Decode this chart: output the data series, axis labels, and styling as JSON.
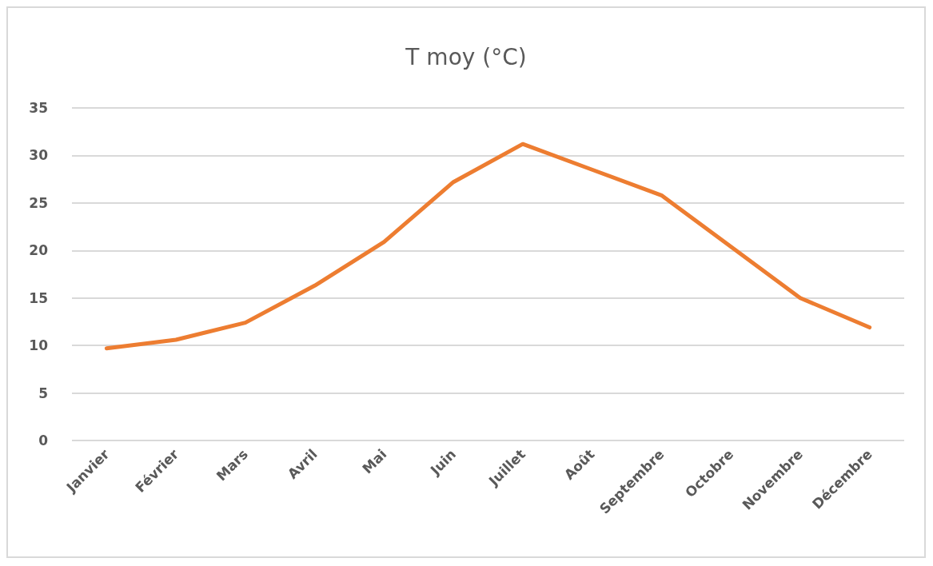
{
  "chart_data": {
    "type": "line",
    "title": "T moy (°C)",
    "categories": [
      "Janvier",
      "Février",
      "Mars",
      "Avril",
      "Mai",
      "Juin",
      "Juillet",
      "Août",
      "Septembre",
      "Octobre",
      "Novembre",
      "Décembre"
    ],
    "values": [
      9.7,
      10.6,
      12.4,
      16.3,
      20.9,
      27.2,
      31.2,
      28.5,
      25.8,
      20.4,
      15.0,
      11.9
    ],
    "color": "#ed7d31",
    "ylim": [
      0,
      35
    ],
    "yticks": [
      0,
      5,
      10,
      15,
      20,
      25,
      30,
      35
    ],
    "grid": "y",
    "marker": "none",
    "line_style": "solid"
  }
}
